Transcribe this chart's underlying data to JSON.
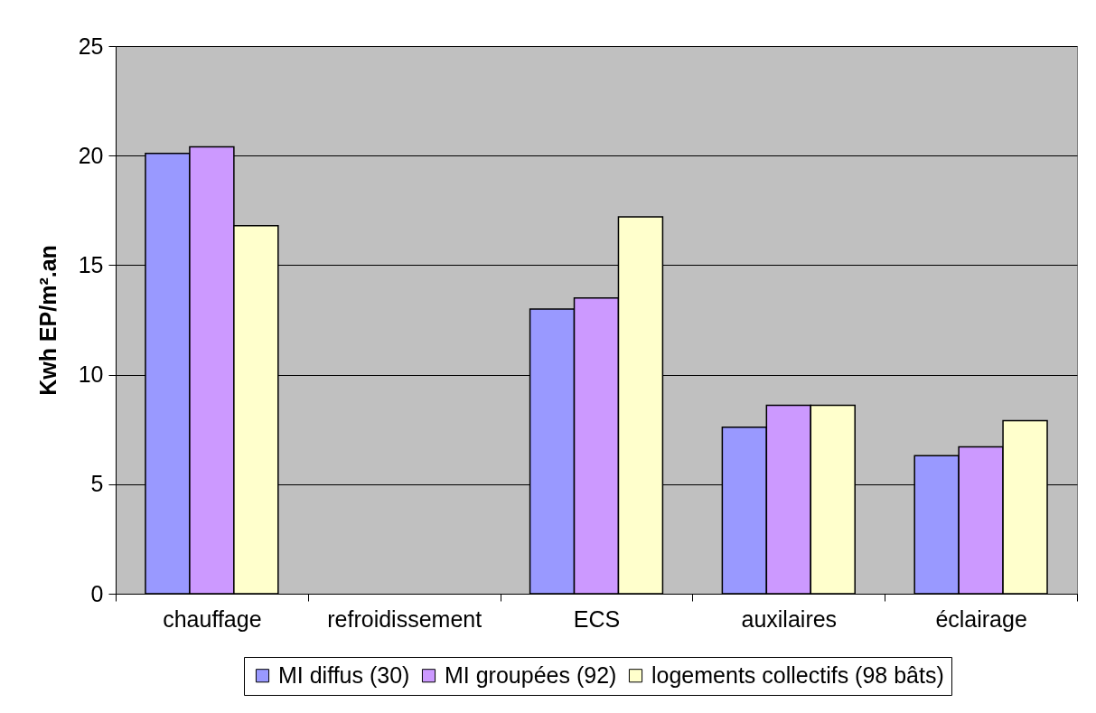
{
  "chart_data": {
    "type": "bar",
    "ylabel": "Kwh EP/m².an",
    "categories": [
      "chauffage",
      "refroidissement",
      "ECS",
      "auxilaires",
      "éclairage"
    ],
    "series": [
      {
        "name": "MI diffus (30)",
        "color": "#9999ff",
        "values": [
          20.1,
          null,
          13.0,
          7.6,
          6.3
        ]
      },
      {
        "name": "MI groupées (92)",
        "color": "#cc99ff",
        "values": [
          20.4,
          null,
          13.5,
          8.6,
          6.7
        ]
      },
      {
        "name": "logements collectifs (98 bâts)",
        "color": "#ffffcc",
        "values": [
          16.8,
          null,
          17.2,
          8.6,
          7.9
        ]
      }
    ],
    "ylim": [
      0,
      25
    ],
    "yticks": [
      0,
      5,
      10,
      15,
      20,
      25
    ],
    "grid": "y",
    "legend": "bottom"
  }
}
